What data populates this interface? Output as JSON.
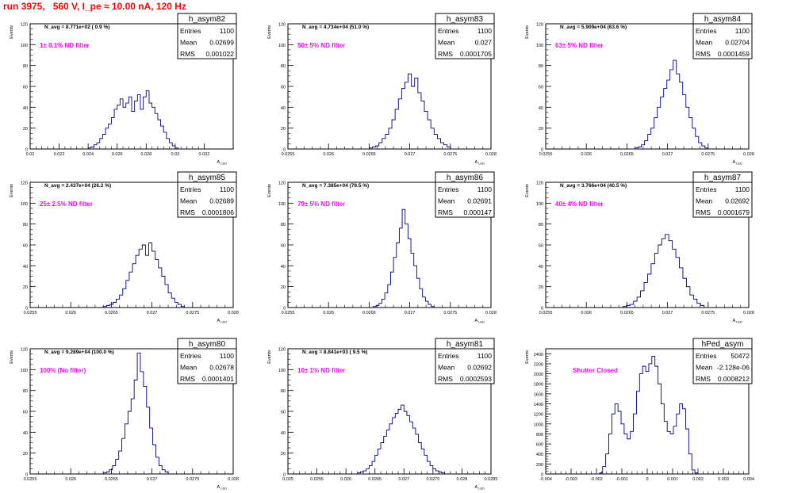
{
  "page": {
    "title": "run 3975,   560 V, I_pe ≈ 10.00 nA, 120 Hz"
  },
  "chart_data": [
    {
      "type": "bar",
      "name": "h_asym82",
      "navg": "N_avg = 8.771e+02 ( 0.9 %)",
      "filter": "1± 0.1% ND filter",
      "stats": {
        "entries_label": "Entries",
        "entries": "1100",
        "mean_label": "Mean",
        "mean": "0.02699",
        "rms_label": "RMS",
        "rms": "0.001022"
      },
      "ylabel": "Events",
      "xlabel": "A",
      "xlabel_sub": "LED",
      "xlim": [
        0.02,
        0.034
      ],
      "ylim": [
        0,
        120
      ],
      "xticks": [
        0.02,
        0.022,
        0.024,
        0.026,
        0.028,
        0.03,
        0.032
      ],
      "xtick_labels": [
        "0.02",
        "0.022",
        "0.024",
        "0.026",
        "0.028",
        "0.03",
        "0.032"
      ],
      "yticks": [
        0,
        20,
        40,
        60,
        80,
        100,
        120
      ],
      "ytick_labels": [
        "0",
        "20",
        "40",
        "60",
        "80",
        "100",
        "120"
      ],
      "bins": [
        0.024,
        0.0302
      ],
      "counts": [
        1,
        2,
        4,
        6,
        10,
        14,
        20,
        24,
        30,
        38,
        42,
        48,
        40,
        44,
        50,
        36,
        46,
        52,
        38,
        50,
        56,
        44,
        40,
        34,
        28,
        22,
        16,
        10,
        6,
        3,
        1
      ]
    },
    {
      "type": "bar",
      "name": "h_asym83",
      "navg": "N_avg = 4.734e+04 (51.0 %)",
      "filter": "50± 5% ND filter",
      "stats": {
        "entries_label": "Entries",
        "entries": "1100",
        "mean_label": "Mean",
        "mean": "0.027",
        "rms_label": "RMS",
        "rms": "0.0001705"
      },
      "ylabel": "Events",
      "xlabel": "A",
      "xlabel_sub": "LED",
      "xlim": [
        0.0255,
        0.028
      ],
      "ylim": [
        0,
        120
      ],
      "xticks": [
        0.0255,
        0.026,
        0.0265,
        0.027,
        0.0275,
        0.028
      ],
      "xtick_labels": [
        "0.0255",
        "0.026",
        "0.0265",
        "0.027",
        "0.0275",
        "0.028"
      ],
      "yticks": [
        0,
        20,
        40,
        60,
        80,
        100,
        120
      ],
      "ytick_labels": [
        "0",
        "20",
        "40",
        "60",
        "80",
        "100",
        "120"
      ],
      "bins": [
        0.0265,
        0.0275
      ],
      "counts": [
        1,
        2,
        3,
        6,
        10,
        14,
        20,
        28,
        38,
        48,
        58,
        64,
        72,
        60,
        68,
        54,
        46,
        36,
        28,
        20,
        14,
        10,
        6,
        4,
        2
      ]
    },
    {
      "type": "bar",
      "name": "h_asym84",
      "navg": "N_avg = 5.909e+04 (63.6 %)",
      "filter": "63± 5% ND filter",
      "stats": {
        "entries_label": "Entries",
        "entries": "1100",
        "mean_label": "Mean",
        "mean": "0.02704",
        "rms_label": "RMS",
        "rms": "0.0001459"
      },
      "ylabel": "Events",
      "xlabel": "A",
      "xlabel_sub": "LED",
      "xlim": [
        0.0255,
        0.028
      ],
      "ylim": [
        0,
        120
      ],
      "xticks": [
        0.0255,
        0.026,
        0.0265,
        0.027,
        0.0275,
        0.028
      ],
      "xtick_labels": [
        "0.0255",
        "0.026",
        "0.0265",
        "0.027",
        "0.0275",
        "0.028"
      ],
      "yticks": [
        0,
        20,
        40,
        60,
        80,
        100,
        120
      ],
      "ytick_labels": [
        "0",
        "20",
        "40",
        "60",
        "80",
        "100",
        "120"
      ],
      "bins": [
        0.0266,
        0.0275
      ],
      "counts": [
        1,
        2,
        4,
        8,
        14,
        20,
        30,
        40,
        50,
        58,
        66,
        76,
        85,
        72,
        64,
        52,
        40,
        30,
        20,
        12,
        6,
        3,
        1
      ]
    },
    {
      "type": "bar",
      "name": "h_asym85",
      "navg": "N_avg = 2.437e+04 (26.2 %)",
      "filter": "25± 2.5% ND filter",
      "stats": {
        "entries_label": "Entries",
        "entries": "1100",
        "mean_label": "Mean",
        "mean": "0.02689",
        "rms_label": "RMS",
        "rms": "0.0001806"
      },
      "ylabel": "Events",
      "xlabel": "A",
      "xlabel_sub": "LED",
      "xlim": [
        0.0255,
        0.028
      ],
      "ylim": [
        0,
        120
      ],
      "xticks": [
        0.0255,
        0.026,
        0.0265,
        0.027,
        0.0275,
        0.028
      ],
      "xtick_labels": [
        "0.0255",
        "0.026",
        "0.0265",
        "0.027",
        "0.0275",
        "0.028"
      ],
      "yticks": [
        0,
        20,
        40,
        60,
        80,
        100,
        120
      ],
      "ytick_labels": [
        "0",
        "20",
        "40",
        "60",
        "80",
        "100",
        "120"
      ],
      "bins": [
        0.0264,
        0.0274
      ],
      "counts": [
        1,
        2,
        3,
        5,
        8,
        12,
        18,
        26,
        34,
        42,
        50,
        56,
        60,
        50,
        62,
        54,
        46,
        38,
        30,
        22,
        14,
        9,
        5,
        3,
        1
      ]
    },
    {
      "type": "bar",
      "name": "h_asym86",
      "navg": "N_avg = 7.385e+04 (79.5 %)",
      "filter": "79± 5% ND filter",
      "stats": {
        "entries_label": "Entries",
        "entries": "1100",
        "mean_label": "Mean",
        "mean": "0.02691",
        "rms_label": "RMS",
        "rms": "0.000147"
      },
      "ylabel": "Events",
      "xlabel": "A",
      "xlabel_sub": "LED",
      "xlim": [
        0.0255,
        0.028
      ],
      "ylim": [
        0,
        120
      ],
      "xticks": [
        0.0255,
        0.026,
        0.0265,
        0.027,
        0.0275,
        0.028
      ],
      "xtick_labels": [
        "0.0255",
        "0.026",
        "0.0265",
        "0.027",
        "0.0275",
        "0.028"
      ],
      "yticks": [
        0,
        20,
        40,
        60,
        80,
        100,
        120
      ],
      "ytick_labels": [
        "0",
        "20",
        "40",
        "60",
        "80",
        "100",
        "120"
      ],
      "bins": [
        0.02655,
        0.0273
      ],
      "counts": [
        1,
        2,
        4,
        8,
        14,
        22,
        34,
        48,
        62,
        76,
        94,
        80,
        66,
        52,
        40,
        28,
        18,
        10,
        6,
        3,
        1
      ]
    },
    {
      "type": "bar",
      "name": "h_asym87",
      "navg": "N_avg = 3.766e+04 (40.5 %)",
      "filter": "40± 4% ND filter",
      "stats": {
        "entries_label": "Entries",
        "entries": "1100",
        "mean_label": "Mean",
        "mean": "0.02692",
        "rms_label": "RMS",
        "rms": "0.0001679"
      },
      "ylabel": "Events",
      "xlabel": "A",
      "xlabel_sub": "LED",
      "xlim": [
        0.0255,
        0.028
      ],
      "ylim": [
        0,
        120
      ],
      "xticks": [
        0.0255,
        0.026,
        0.0265,
        0.027,
        0.0275,
        0.028
      ],
      "xtick_labels": [
        "0.0255",
        "0.026",
        "0.0265",
        "0.027",
        "0.0275",
        "0.028"
      ],
      "yticks": [
        0,
        20,
        40,
        60,
        80,
        100,
        120
      ],
      "ytick_labels": [
        "0",
        "20",
        "40",
        "60",
        "80",
        "100",
        "120"
      ],
      "bins": [
        0.02645,
        0.02745
      ],
      "counts": [
        1,
        2,
        3,
        6,
        10,
        16,
        24,
        32,
        42,
        52,
        60,
        66,
        70,
        64,
        56,
        48,
        38,
        28,
        20,
        12,
        8,
        4,
        2
      ]
    },
    {
      "type": "bar",
      "name": "h_asym80",
      "navg": "N_avg = 9.289e+04 (100.0 %)",
      "filter": "100% (No filter)",
      "stats": {
        "entries_label": "Entries",
        "entries": "1100",
        "mean_label": "Mean",
        "mean": "0.02678",
        "rms_label": "RMS",
        "rms": "0.0001401"
      },
      "ylabel": "Events",
      "xlabel": "A",
      "xlabel_sub": "LED",
      "xlim": [
        0.0255,
        0.028
      ],
      "ylim": [
        0,
        120
      ],
      "xticks": [
        0.0255,
        0.026,
        0.0265,
        0.027,
        0.0275,
        0.028
      ],
      "xtick_labels": [
        "0.0255",
        "0.026",
        "0.0265",
        "0.027",
        "0.0275",
        "0.028"
      ],
      "yticks": [
        0,
        20,
        40,
        60,
        80,
        100,
        120
      ],
      "ytick_labels": [
        "0",
        "20",
        "40",
        "60",
        "80",
        "100",
        "120"
      ],
      "bins": [
        0.0264,
        0.0272
      ],
      "counts": [
        1,
        2,
        4,
        8,
        14,
        22,
        34,
        48,
        60,
        72,
        90,
        116,
        98,
        84,
        64,
        44,
        28,
        16,
        8,
        4,
        2
      ]
    },
    {
      "type": "bar",
      "name": "h_asym81",
      "navg": "N_avg = 8.841e+03 ( 9.5 %)",
      "filter": "10± 1% ND filter",
      "stats": {
        "entries_label": "Entries",
        "entries": "1100",
        "mean_label": "Mean",
        "mean": "0.02692",
        "rms_label": "RMS",
        "rms": "0.0002593"
      },
      "ylabel": "Events",
      "xlabel": "A",
      "xlabel_sub": "LED",
      "xlim": [
        0.025,
        0.0285
      ],
      "ylim": [
        0,
        120
      ],
      "xticks": [
        0.025,
        0.0255,
        0.026,
        0.0265,
        0.027,
        0.0275,
        0.028,
        0.0285
      ],
      "xtick_labels": [
        "0.025",
        "0.0255",
        "0.026",
        "0.0265",
        "0.027",
        "0.0275",
        "0.028",
        "0.0285"
      ],
      "yticks": [
        0,
        20,
        40,
        60,
        80,
        100,
        120
      ],
      "ytick_labels": [
        "0",
        "20",
        "40",
        "60",
        "80",
        "100",
        "120"
      ],
      "bins": [
        0.0262,
        0.0277
      ],
      "counts": [
        1,
        2,
        3,
        5,
        8,
        12,
        18,
        24,
        30,
        36,
        42,
        48,
        54,
        58,
        62,
        66,
        60,
        56,
        50,
        44,
        38,
        30,
        24,
        18,
        12,
        8,
        5,
        3,
        2,
        1
      ]
    },
    {
      "type": "bar",
      "name": "hPed_asym",
      "navg": "",
      "filter": "Shutter Closed",
      "stats": {
        "entries_label": "Entries",
        "entries": "50472",
        "mean_label": "Mean",
        "mean": "-2.128e-06",
        "rms_label": "RMS",
        "rms": "0.0008212"
      },
      "ylabel": "Events",
      "xlabel": "",
      "xlabel_sub": "",
      "xlim": [
        -0.004,
        0.004
      ],
      "ylim": [
        0,
        2500
      ],
      "xticks": [
        -0.004,
        -0.003,
        -0.002,
        -0.001,
        0,
        0.001,
        0.002,
        0.003,
        0.004
      ],
      "xtick_labels": [
        "-0.004",
        "-0.003",
        "-0.002",
        "-0.001",
        "0",
        "0.001",
        "0.002",
        "0.003",
        "0.004"
      ],
      "yticks": [
        0,
        200,
        400,
        600,
        800,
        1000,
        1200,
        1400,
        1600,
        1800,
        2000,
        2200,
        2400
      ],
      "ytick_labels": [
        "0",
        "200",
        "400",
        "600",
        "800",
        "1000",
        "1200",
        "1400",
        "1600",
        "1800",
        "2000",
        "2200",
        "2400"
      ],
      "bins": [
        -0.002,
        0.002
      ],
      "counts": [
        0,
        20,
        150,
        400,
        800,
        1200,
        1400,
        1250,
        1000,
        800,
        700,
        850,
        1200,
        1650,
        2000,
        2150,
        2050,
        2200,
        2350,
        2150,
        1800,
        1400,
        1050,
        850,
        800,
        950,
        1200,
        1400,
        1300,
        900,
        400,
        80,
        20
      ]
    }
  ]
}
